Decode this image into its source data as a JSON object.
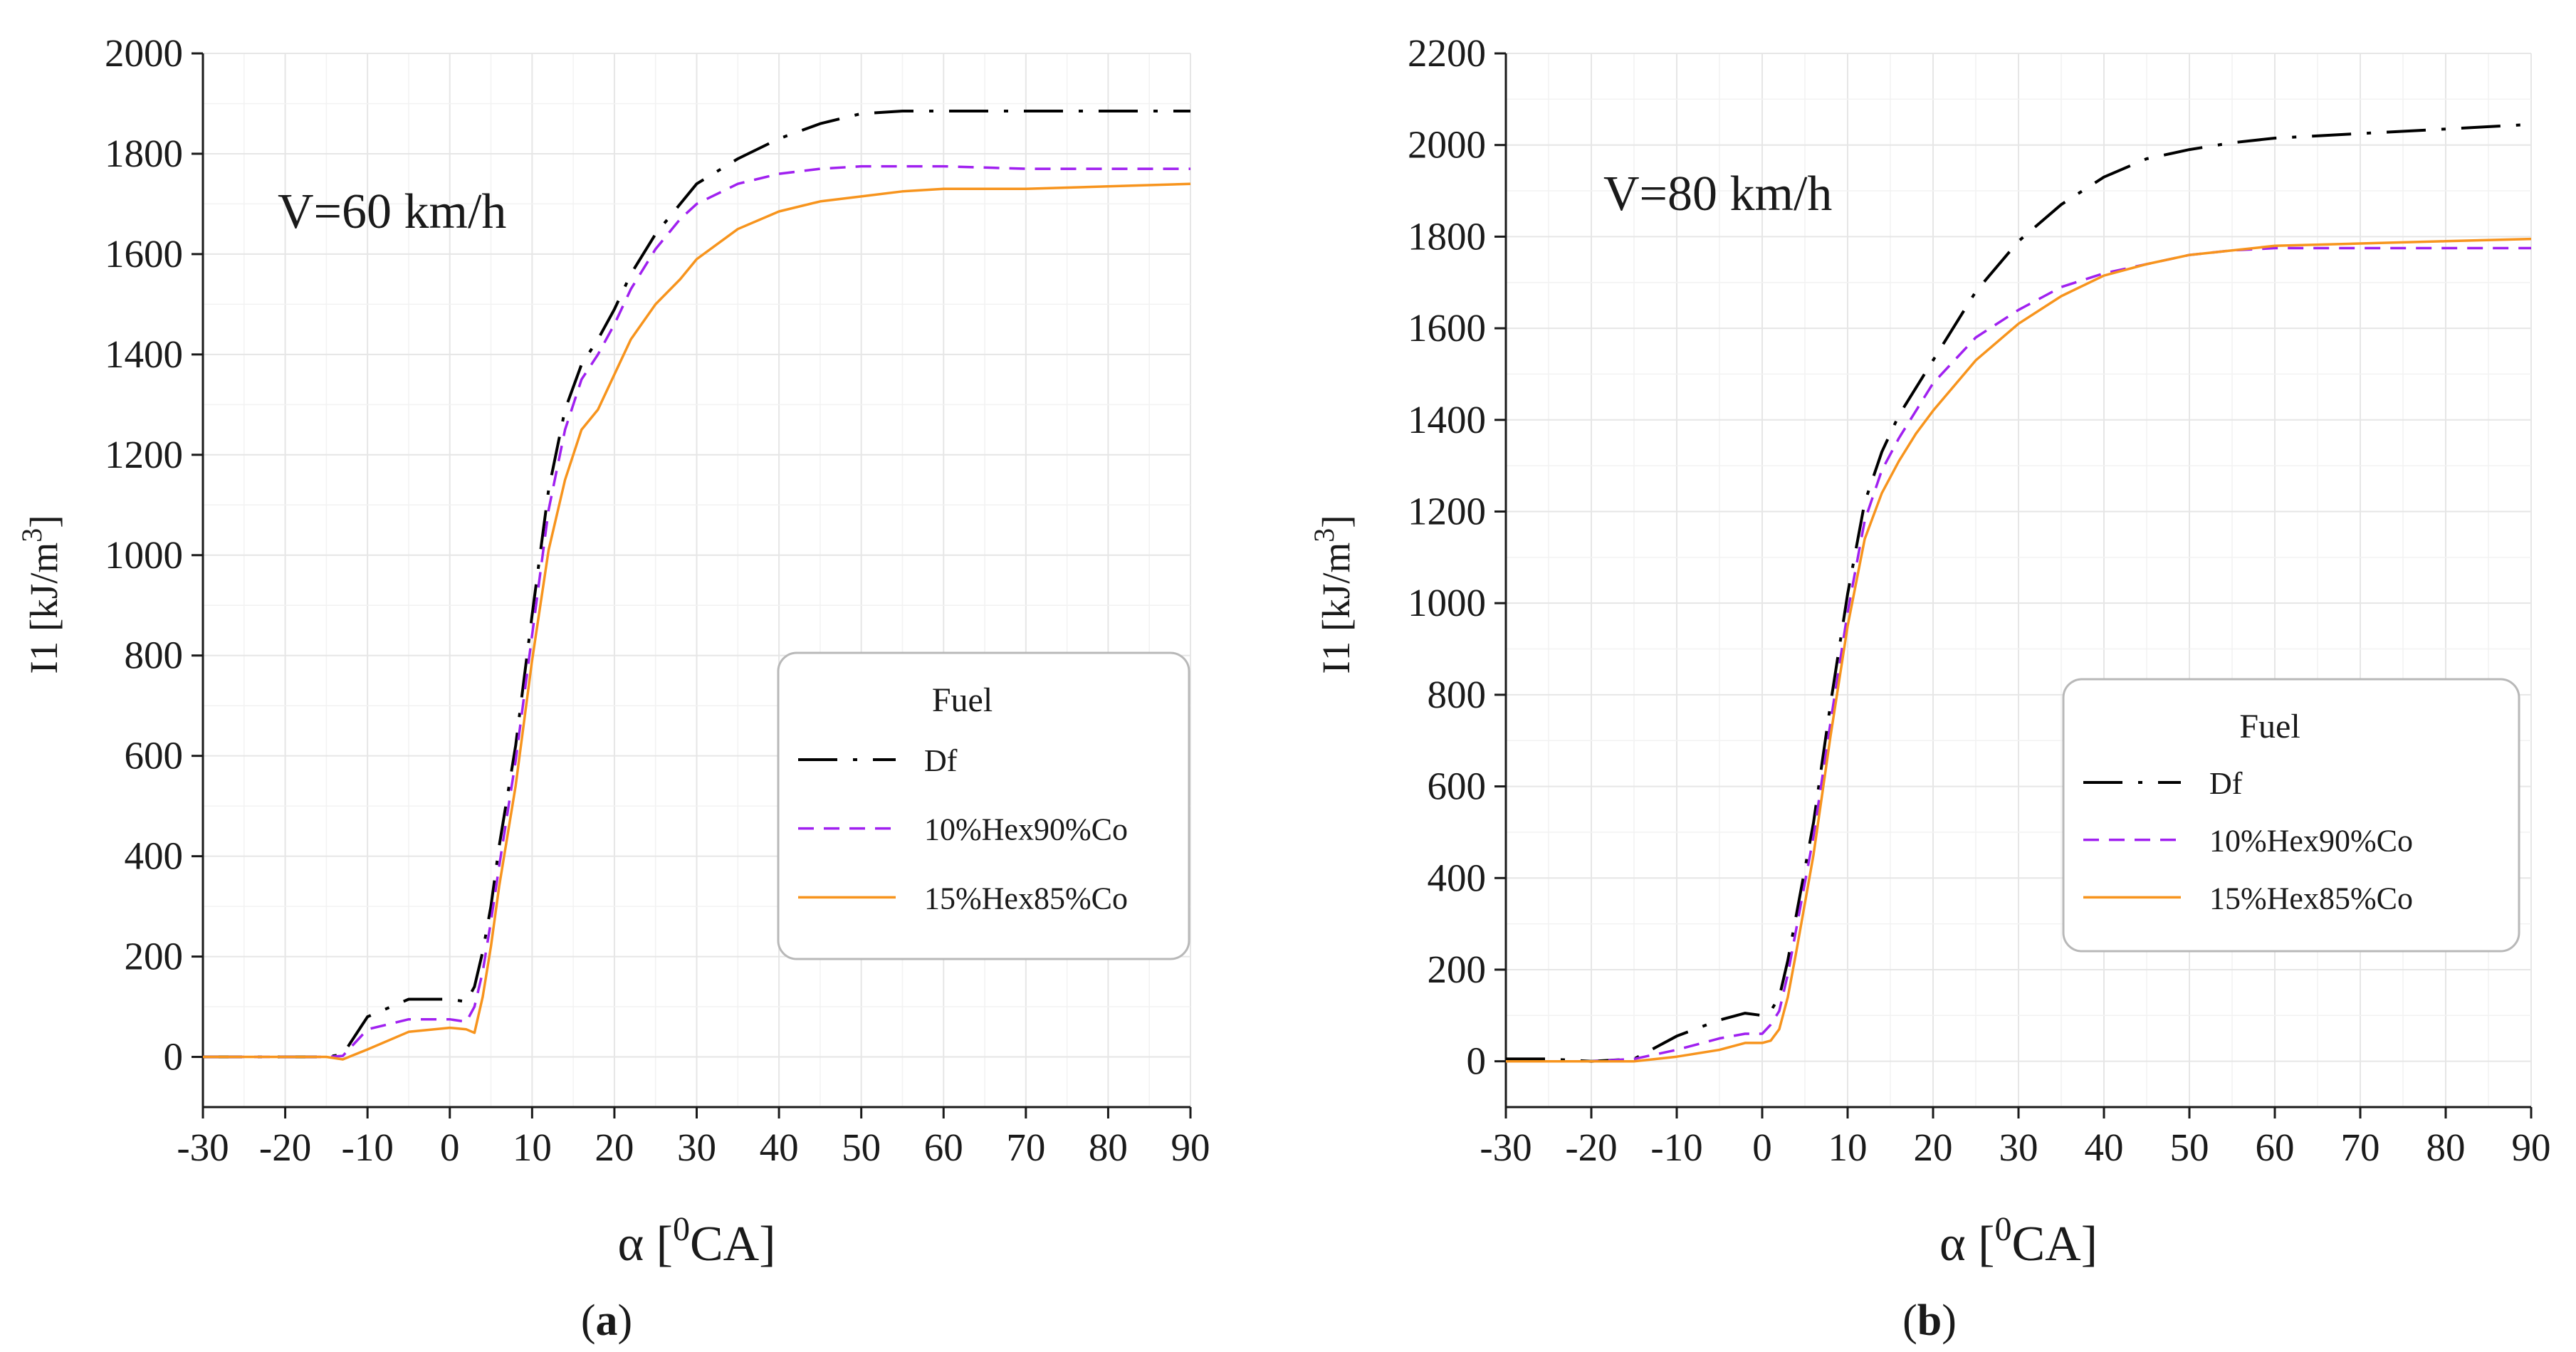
{
  "colors": {
    "df": "#000000",
    "hex10": "#a020f0",
    "hex15": "#f7941d",
    "grid": "#e6e6e6",
    "axis": "#1a1a1a"
  },
  "chart_data": [
    {
      "type": "line",
      "panel": "a",
      "caption": "(a)",
      "caption_parts": [
        "(",
        "a",
        ")"
      ],
      "annotation": "V=60 km/h",
      "xlabel": "α [0CA]",
      "xlabel_parts": {
        "alpha": "α",
        "open": "[",
        "sup": "0",
        "unit": "CA]"
      },
      "ylabel": "I1 [kJ/m3]",
      "ylabel_parts": {
        "main": "I1 [kJ/m",
        "sup": "3",
        "close": "]"
      },
      "xlim": [
        -30,
        90
      ],
      "ylim": [
        -100,
        2000
      ],
      "xticks": [
        -30,
        -20,
        -10,
        0,
        10,
        20,
        30,
        40,
        50,
        60,
        70,
        80,
        90
      ],
      "xtick_labels": [
        "-30",
        "-20",
        "-10",
        "0",
        "10",
        "20",
        "30",
        "40",
        "50",
        "60",
        "70",
        "80",
        "90"
      ],
      "yticks": [
        0,
        200,
        400,
        600,
        800,
        1000,
        1200,
        1400,
        1600,
        1800,
        2000
      ],
      "ytick_labels": [
        "0",
        "200",
        "400",
        "600",
        "800",
        "1000",
        "1200",
        "1400",
        "1600",
        "1800",
        "2000"
      ],
      "grid": true,
      "legend": {
        "title": "Fuel",
        "position": "lower-right"
      },
      "x": [
        -30,
        -25,
        -20,
        -15,
        -13,
        -10,
        -5,
        0,
        2,
        3,
        4,
        5,
        6,
        8,
        10,
        12,
        14,
        16,
        18,
        20,
        22,
        25,
        28,
        30,
        35,
        40,
        45,
        50,
        55,
        60,
        70,
        80,
        90
      ],
      "series": [
        {
          "name": "Df",
          "key": "df",
          "dash": "55,22,6,22",
          "values": [
            0,
            0,
            0,
            0,
            5,
            80,
            115,
            115,
            110,
            140,
            210,
            300,
            420,
            620,
            880,
            1130,
            1290,
            1380,
            1430,
            1490,
            1560,
            1640,
            1700,
            1740,
            1790,
            1830,
            1860,
            1880,
            1885,
            1885,
            1885,
            1885,
            1885
          ]
        },
        {
          "name": "10%Hex90%Co",
          "key": "hex10",
          "dash": "22,14",
          "values": [
            0,
            0,
            0,
            0,
            2,
            55,
            75,
            75,
            70,
            100,
            170,
            270,
            380,
            590,
            840,
            1090,
            1250,
            1350,
            1400,
            1460,
            1530,
            1610,
            1670,
            1700,
            1740,
            1760,
            1770,
            1775,
            1775,
            1775,
            1770,
            1770,
            1770
          ]
        },
        {
          "name": "15%Hex85%Co",
          "key": "hex15",
          "dash": "",
          "values": [
            0,
            0,
            0,
            0,
            -5,
            15,
            50,
            58,
            55,
            48,
            120,
            220,
            340,
            540,
            790,
            1010,
            1150,
            1250,
            1290,
            1360,
            1430,
            1500,
            1550,
            1590,
            1650,
            1685,
            1705,
            1715,
            1725,
            1730,
            1730,
            1735,
            1740
          ]
        }
      ]
    },
    {
      "type": "line",
      "panel": "b",
      "caption": "(b)",
      "caption_parts": [
        "(",
        "b",
        ")"
      ],
      "annotation": "V=80 km/h",
      "xlabel": "α [0CA]",
      "xlabel_parts": {
        "alpha": "α",
        "open": "[",
        "sup": "0",
        "unit": "CA]"
      },
      "ylabel": "I1 [kJ/m3]",
      "ylabel_parts": {
        "main": "I1 [kJ/m",
        "sup": "3",
        "close": "]"
      },
      "xlim": [
        -30,
        90
      ],
      "ylim": [
        -100,
        2200
      ],
      "xticks": [
        -30,
        -20,
        -10,
        0,
        10,
        20,
        30,
        40,
        50,
        60,
        70,
        80,
        90
      ],
      "xtick_labels": [
        "-30",
        "-20",
        "-10",
        "0",
        "10",
        "20",
        "30",
        "40",
        "50",
        "60",
        "70",
        "80",
        "90"
      ],
      "yticks": [
        0,
        200,
        400,
        600,
        800,
        1000,
        1200,
        1400,
        1600,
        1800,
        2000,
        2200
      ],
      "ytick_labels": [
        "0",
        "200",
        "400",
        "600",
        "800",
        "1000",
        "1200",
        "1400",
        "1600",
        "1800",
        "2000",
        "2200"
      ],
      "grid": true,
      "legend": {
        "title": "Fuel",
        "position": "lower-right"
      },
      "x": [
        -30,
        -25,
        -20,
        -15,
        -10,
        -5,
        -2,
        0,
        1,
        2,
        3,
        4,
        6,
        8,
        10,
        12,
        14,
        16,
        18,
        20,
        25,
        30,
        35,
        40,
        45,
        50,
        55,
        60,
        70,
        80,
        90
      ],
      "series": [
        {
          "name": "Df",
          "key": "df",
          "dash": "55,22,6,22",
          "values": [
            5,
            5,
            0,
            5,
            55,
            90,
            105,
            100,
            110,
            140,
            220,
            320,
            520,
            780,
            1020,
            1220,
            1330,
            1410,
            1470,
            1530,
            1680,
            1790,
            1870,
            1930,
            1970,
            1990,
            2005,
            2015,
            2025,
            2035,
            2045
          ]
        },
        {
          "name": "10%Hex90%Co",
          "key": "hex10",
          "dash": "22,14",
          "values": [
            0,
            0,
            0,
            5,
            25,
            50,
            60,
            60,
            80,
            110,
            190,
            290,
            490,
            740,
            980,
            1180,
            1290,
            1360,
            1420,
            1480,
            1580,
            1640,
            1690,
            1720,
            1740,
            1760,
            1770,
            1775,
            1775,
            1775,
            1775
          ]
        },
        {
          "name": "15%Hex85%Co",
          "key": "hex15",
          "dash": "",
          "values": [
            0,
            0,
            0,
            0,
            10,
            25,
            40,
            40,
            45,
            70,
            140,
            240,
            450,
            710,
            950,
            1140,
            1240,
            1310,
            1370,
            1420,
            1530,
            1610,
            1670,
            1715,
            1740,
            1760,
            1770,
            1780,
            1785,
            1790,
            1795
          ]
        }
      ]
    }
  ]
}
